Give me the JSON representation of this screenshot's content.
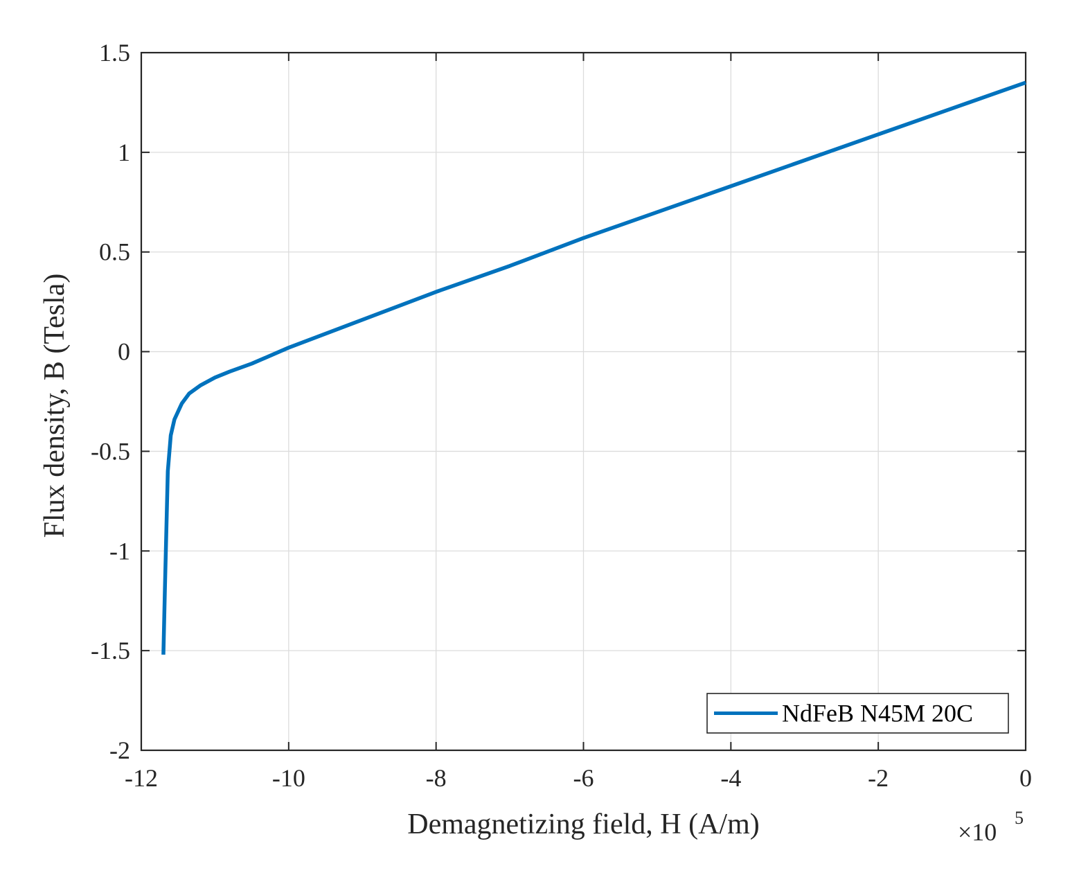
{
  "chart_data": {
    "type": "line",
    "xlabel": "Demagnetizing field, H (A/m)",
    "ylabel": "Flux density, B (Tesla)",
    "x_multiplier": "×10",
    "x_multiplier_exponent": "5",
    "xlim": [
      -12,
      0
    ],
    "ylim": [
      -2,
      1.5
    ],
    "xticks": [
      -12,
      -10,
      -8,
      -6,
      -4,
      -2,
      0
    ],
    "xtick_labels": [
      "-12",
      "-10",
      "-8",
      "-6",
      "-4",
      "-2",
      "0"
    ],
    "yticks": [
      -2,
      -1.5,
      -1,
      -0.5,
      0,
      0.5,
      1,
      1.5
    ],
    "ytick_labels": [
      "-2",
      "-1.5",
      "-1",
      "-0.5",
      "0",
      "0.5",
      "1",
      "1.5"
    ],
    "grid": true,
    "legend_position": "bottom-right",
    "series": [
      {
        "name": "NdFeB N45M 20C",
        "color": "#0072BD",
        "x": [
          -11.7,
          -11.68,
          -11.66,
          -11.64,
          -11.6,
          -11.55,
          -11.45,
          -11.35,
          -11.2,
          -11.0,
          -10.8,
          -10.5,
          -10.0,
          -9.0,
          -8.0,
          -7.0,
          -6.0,
          -5.0,
          -4.0,
          -3.0,
          -2.0,
          -1.0,
          0
        ],
        "y": [
          -1.52,
          -1.2,
          -0.9,
          -0.6,
          -0.42,
          -0.34,
          -0.26,
          -0.21,
          -0.17,
          -0.13,
          -0.1,
          -0.06,
          0.02,
          0.16,
          0.3,
          0.43,
          0.57,
          0.7,
          0.83,
          0.96,
          1.09,
          1.22,
          1.35
        ]
      }
    ]
  }
}
